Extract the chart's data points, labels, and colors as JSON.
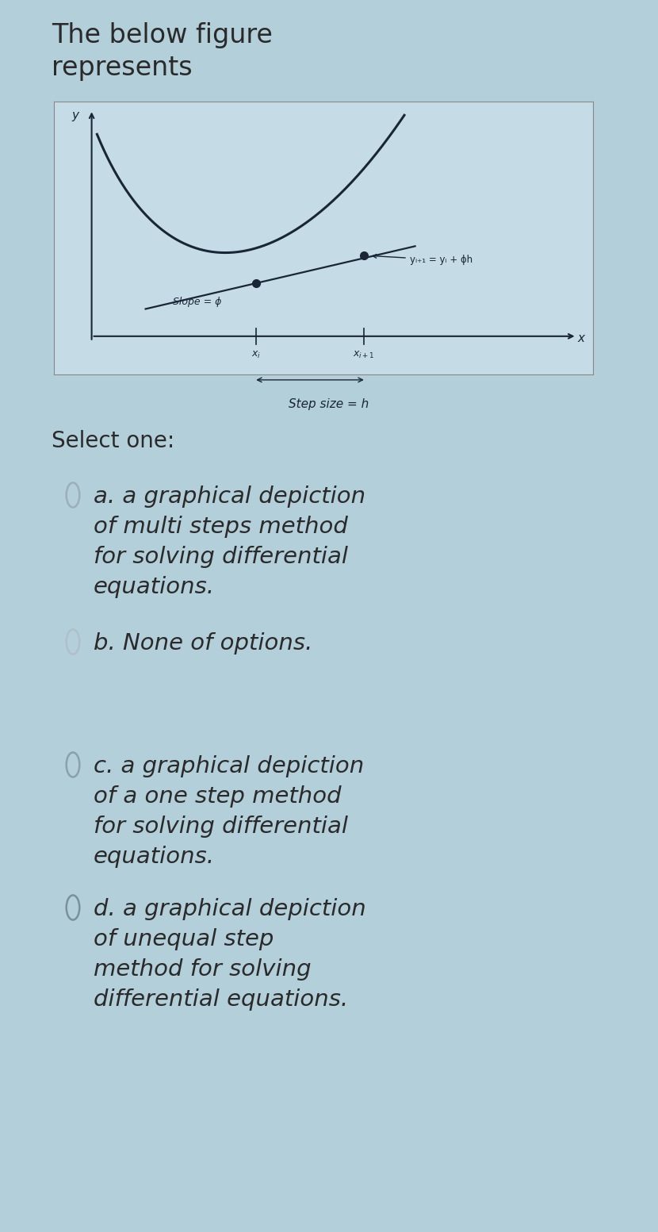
{
  "bg_color": "#b3cfd9",
  "title": "The below figure\nrepresents",
  "title_fontsize": 24,
  "title_color": "#2a2a2a",
  "graph_bg": "#c5dce6",
  "graph_border": "#888888",
  "select_one_text": "Select one:",
  "slope_label": "Slope = ϕ",
  "step_label": "Step size = h",
  "equation_label": "yᵢ₊₁ = yᵢ + ϕh",
  "curve_color": "#1a2535",
  "tangent_color": "#1a2535",
  "axis_color": "#1a2535",
  "dot_color": "#1a2535",
  "text_color": "#2a2a2a",
  "option_fontsize": 21,
  "radio_colors": [
    "#9aafba",
    "#b0c0c8",
    "#8aa0ac",
    "#7a909c"
  ],
  "option_items": [
    [
      "a.",
      "a graphical depiction\nof multi steps method\nfor solving differential\nequations."
    ],
    [
      "b.",
      "None of options."
    ],
    [
      "c.",
      "a graphical depiction\nof a one step method\nfor solving differential\nequations."
    ],
    [
      "d.",
      "a graphical depiction\nof unequal step\nmethod for solving\ndifferential equations."
    ]
  ]
}
